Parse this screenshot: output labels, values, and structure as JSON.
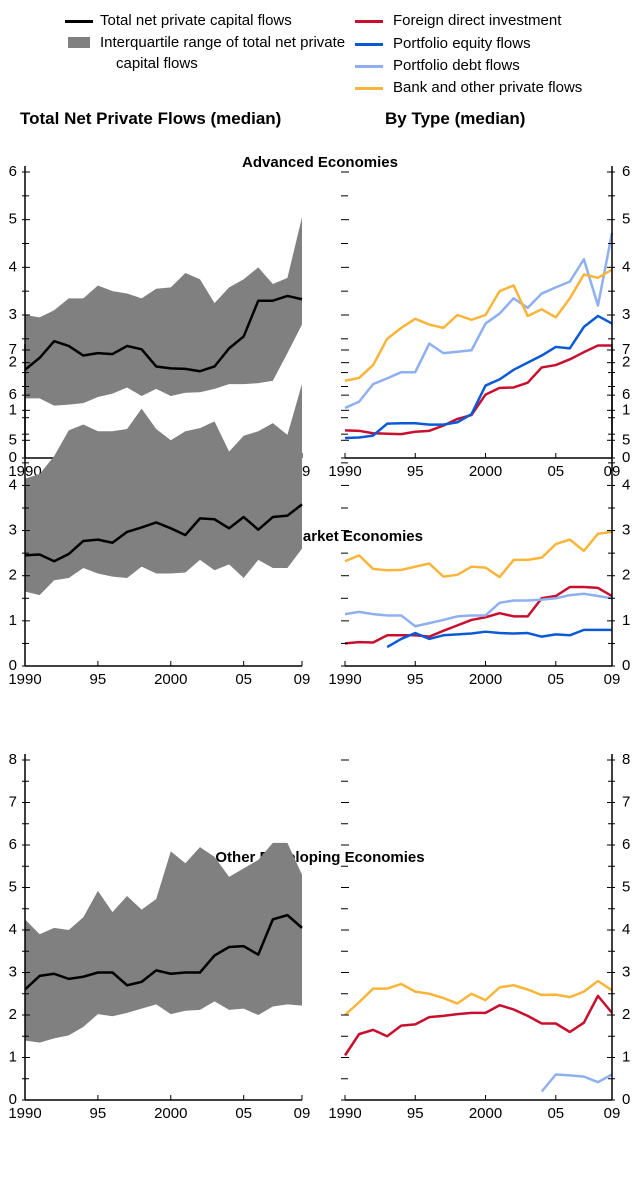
{
  "chart_data": [
    {
      "type": "band-line",
      "title": "Advanced Economies",
      "subtitle": "Total Net Private Flows (median)",
      "x": [
        1990,
        1991,
        1992,
        1993,
        1994,
        1995,
        1996,
        1997,
        1998,
        1999,
        2000,
        2001,
        2002,
        2003,
        2004,
        2005,
        2006,
        2007,
        2008,
        2009
      ],
      "xlim": [
        1990,
        2009
      ],
      "xticks": [
        1990,
        {
          "value": 1995,
          "label": "95"
        },
        2000,
        {
          "value": 2005,
          "label": "05"
        },
        {
          "value": 2009,
          "label": "09"
        }
      ],
      "ylim": [
        0,
        6
      ],
      "yticks": [
        0,
        1,
        2,
        3,
        4,
        5,
        6
      ],
      "yminorticks": [
        0.5,
        1.5,
        2.5,
        3.5,
        4.5,
        5.5
      ],
      "band": {
        "name": "Interquartile range of total net private capital flows",
        "color": "#808080",
        "upper": [
          3.0,
          2.95,
          3.1,
          3.35,
          3.35,
          3.62,
          3.5,
          3.45,
          3.35,
          3.55,
          3.58,
          3.88,
          3.75,
          3.25,
          3.58,
          3.75,
          4.0,
          3.65,
          3.78,
          5.05
        ],
        "lower": [
          1.25,
          1.25,
          1.1,
          1.12,
          1.15,
          1.28,
          1.35,
          1.48,
          1.3,
          1.45,
          1.3,
          1.37,
          1.38,
          1.45,
          1.55,
          1.55,
          1.57,
          1.62,
          2.2,
          2.8
        ]
      },
      "series": [
        {
          "name": "Total net private capital flows",
          "color": "#000000",
          "values": [
            1.85,
            2.1,
            2.45,
            2.35,
            2.15,
            2.2,
            2.18,
            2.35,
            2.28,
            1.92,
            1.88,
            1.87,
            1.82,
            1.92,
            2.3,
            2.55,
            3.3,
            3.3,
            3.4,
            3.33
          ]
        }
      ]
    },
    {
      "type": "line",
      "subtitle": "By Type (median)",
      "x": [
        1990,
        1991,
        1992,
        1993,
        1994,
        1995,
        1996,
        1997,
        1998,
        1999,
        2000,
        2001,
        2002,
        2003,
        2004,
        2005,
        2006,
        2007,
        2008,
        2009
      ],
      "xlim": [
        1990,
        2009
      ],
      "xticks": [
        1990,
        {
          "value": 1995,
          "label": "95"
        },
        2000,
        {
          "value": 2005,
          "label": "05"
        },
        {
          "value": 2009,
          "label": "09"
        }
      ],
      "ylim": [
        0,
        6
      ],
      "yticks": [
        0,
        1,
        2,
        3,
        4,
        5,
        6
      ],
      "yminorticks": [
        0.5,
        1.5,
        2.5,
        3.5,
        4.5,
        5.5
      ],
      "series": [
        {
          "name": "Foreign direct investment",
          "color": "#c8102e",
          "values": [
            0.58,
            0.57,
            0.52,
            0.51,
            0.5,
            0.55,
            0.57,
            0.68,
            0.82,
            0.9,
            1.33,
            1.47,
            1.48,
            1.58,
            1.9,
            1.95,
            2.07,
            2.22,
            2.36,
            2.36
          ]
        },
        {
          "name": "Portfolio equity flows",
          "color": "#0a5ad6",
          "values": [
            0.42,
            0.43,
            0.47,
            0.72,
            0.73,
            0.73,
            0.7,
            0.7,
            0.75,
            0.92,
            1.52,
            1.65,
            1.85,
            2.0,
            2.15,
            2.33,
            2.3,
            2.75,
            2.98,
            2.82
          ]
        },
        {
          "name": "Portfolio debt flows",
          "color": "#8fb0f0",
          "values": [
            1.05,
            1.18,
            1.55,
            1.67,
            1.8,
            1.8,
            2.4,
            2.2,
            2.23,
            2.26,
            2.82,
            3.03,
            3.35,
            3.15,
            3.45,
            3.58,
            3.7,
            4.17,
            3.2,
            4.72
          ]
        },
        {
          "name": "Bank and other private flows",
          "color": "#f9b43a",
          "values": [
            1.62,
            1.68,
            1.95,
            2.5,
            2.73,
            2.92,
            2.8,
            2.73,
            3.0,
            2.9,
            3.0,
            3.5,
            3.62,
            2.98,
            3.12,
            2.95,
            3.35,
            3.85,
            3.78,
            3.95
          ]
        }
      ]
    },
    {
      "type": "band-line",
      "title": "Emerging Market Economies",
      "x": [
        1990,
        1991,
        1992,
        1993,
        1994,
        1995,
        1996,
        1997,
        1998,
        1999,
        2000,
        2001,
        2002,
        2003,
        2004,
        2005,
        2006,
        2007,
        2008,
        2009
      ],
      "xlim": [
        1990,
        2009
      ],
      "xticks": [
        1990,
        {
          "value": 1995,
          "label": "95"
        },
        2000,
        {
          "value": 2005,
          "label": "05"
        },
        {
          "value": 2009,
          "label": "09"
        }
      ],
      "ylim": [
        0,
        7
      ],
      "yticks": [
        0,
        1,
        2,
        3,
        4,
        5,
        6,
        7
      ],
      "yminorticks": [
        0.5,
        1.5,
        2.5,
        3.5,
        4.5,
        5.5,
        6.5
      ],
      "band": {
        "color": "#808080",
        "upper": [
          4.15,
          4.25,
          4.65,
          5.22,
          5.35,
          5.2,
          5.2,
          5.25,
          5.7,
          5.25,
          5.0,
          5.2,
          5.27,
          5.42,
          4.75,
          5.1,
          5.2,
          5.38,
          5.12,
          6.25
        ],
        "lower": [
          1.65,
          1.57,
          1.9,
          1.95,
          2.17,
          2.05,
          1.98,
          1.95,
          2.2,
          2.05,
          2.05,
          2.07,
          2.35,
          2.12,
          2.25,
          1.95,
          2.35,
          2.17,
          2.17,
          2.6
        ]
      },
      "series": [
        {
          "color": "#000000",
          "values": [
            2.45,
            2.47,
            2.32,
            2.48,
            2.77,
            2.8,
            2.73,
            2.97,
            3.07,
            3.18,
            3.05,
            2.9,
            3.27,
            3.25,
            3.05,
            3.3,
            3.02,
            3.3,
            3.33,
            3.58
          ]
        }
      ]
    },
    {
      "type": "line",
      "x": [
        1990,
        1991,
        1992,
        1993,
        1994,
        1995,
        1996,
        1997,
        1998,
        1999,
        2000,
        2001,
        2002,
        2003,
        2004,
        2005,
        2006,
        2007,
        2008,
        2009
      ],
      "xlim": [
        1990,
        2009
      ],
      "xticks": [
        1990,
        {
          "value": 1995,
          "label": "95"
        },
        2000,
        {
          "value": 2005,
          "label": "05"
        },
        {
          "value": 2009,
          "label": "09"
        }
      ],
      "ylim": [
        0,
        7
      ],
      "yticks": [
        0,
        1,
        2,
        3,
        4,
        5,
        6,
        7
      ],
      "yminorticks": [
        0.5,
        1.5,
        2.5,
        3.5,
        4.5,
        5.5,
        6.5
      ],
      "series": [
        {
          "color": "#c8102e",
          "values": [
            0.5,
            0.53,
            0.52,
            0.68,
            0.68,
            0.68,
            0.65,
            0.78,
            0.9,
            1.02,
            1.08,
            1.17,
            1.1,
            1.1,
            1.5,
            1.55,
            1.75,
            1.75,
            1.73,
            1.55
          ]
        },
        {
          "color": "#0a5ad6",
          "values": [
            null,
            null,
            null,
            0.42,
            0.6,
            0.73,
            0.6,
            0.68,
            0.7,
            0.72,
            0.76,
            0.73,
            0.72,
            0.73,
            0.65,
            0.7,
            0.68,
            0.8,
            0.8,
            0.8
          ]
        },
        {
          "color": "#8fb0f0",
          "values": [
            1.15,
            1.2,
            1.15,
            1.12,
            1.12,
            0.88,
            0.95,
            1.02,
            1.1,
            1.12,
            1.12,
            1.4,
            1.45,
            1.45,
            1.47,
            1.5,
            1.57,
            1.6,
            1.55,
            1.5
          ]
        },
        {
          "color": "#f9b43a",
          "values": [
            2.32,
            2.45,
            2.15,
            2.12,
            2.13,
            2.2,
            2.27,
            1.98,
            2.02,
            2.2,
            2.18,
            1.97,
            2.35,
            2.35,
            2.4,
            2.7,
            2.8,
            2.55,
            2.93,
            2.97
          ]
        }
      ]
    },
    {
      "type": "band-line",
      "title": "Other Developing Economies",
      "x": [
        1990,
        1991,
        1992,
        1993,
        1994,
        1995,
        1996,
        1997,
        1998,
        1999,
        2000,
        2001,
        2002,
        2003,
        2004,
        2005,
        2006,
        2007,
        2008,
        2009
      ],
      "xlim": [
        1990,
        2009
      ],
      "xticks": [
        1990,
        {
          "value": 1995,
          "label": "95"
        },
        2000,
        {
          "value": 2005,
          "label": "05"
        },
        {
          "value": 2009,
          "label": "09"
        }
      ],
      "ylim": [
        0,
        8
      ],
      "yticks": [
        0,
        1,
        2,
        3,
        4,
        5,
        6,
        7,
        8
      ],
      "yminorticks": [
        0.5,
        1.5,
        2.5,
        3.5,
        4.5,
        5.5,
        6.5,
        7.5
      ],
      "band": {
        "color": "#808080",
        "upper": [
          4.25,
          3.9,
          4.05,
          4.0,
          4.3,
          4.92,
          4.42,
          4.8,
          4.48,
          4.73,
          5.85,
          5.57,
          5.95,
          5.72,
          5.25,
          5.45,
          5.65,
          6.05,
          6.05,
          5.3
        ],
        "lower": [
          1.4,
          1.35,
          1.45,
          1.52,
          1.72,
          2.02,
          1.97,
          2.05,
          2.15,
          2.25,
          2.02,
          2.1,
          2.12,
          2.32,
          2.12,
          2.15,
          2.0,
          2.2,
          2.25,
          2.22
        ]
      },
      "series": [
        {
          "color": "#000000",
          "values": [
            2.6,
            2.92,
            2.97,
            2.85,
            2.9,
            3.0,
            3.0,
            2.7,
            2.78,
            3.05,
            2.97,
            3.0,
            3.0,
            3.4,
            3.6,
            3.62,
            3.42,
            4.25,
            4.35,
            4.05
          ]
        }
      ]
    },
    {
      "type": "line",
      "x": [
        1990,
        1991,
        1992,
        1993,
        1994,
        1995,
        1996,
        1997,
        1998,
        1999,
        2000,
        2001,
        2002,
        2003,
        2004,
        2005,
        2006,
        2007,
        2008,
        2009
      ],
      "xlim": [
        1990,
        2009
      ],
      "xticks": [
        1990,
        {
          "value": 1995,
          "label": "95"
        },
        2000,
        {
          "value": 2005,
          "label": "05"
        },
        {
          "value": 2009,
          "label": "09"
        }
      ],
      "ylim": [
        0,
        8
      ],
      "yticks": [
        0,
        1,
        2,
        3,
        4,
        5,
        6,
        7,
        8
      ],
      "yminorticks": [
        0.5,
        1.5,
        2.5,
        3.5,
        4.5,
        5.5,
        6.5,
        7.5
      ],
      "series": [
        {
          "color": "#c8102e",
          "values": [
            1.05,
            1.55,
            1.65,
            1.5,
            1.75,
            1.78,
            1.95,
            1.98,
            2.02,
            2.05,
            2.05,
            2.23,
            2.13,
            1.98,
            1.8,
            1.8,
            1.6,
            1.82,
            2.45,
            2.05
          ]
        },
        {
          "color": "#8fb0f0",
          "values": [
            null,
            null,
            null,
            null,
            null,
            null,
            null,
            null,
            null,
            null,
            null,
            null,
            null,
            null,
            0.2,
            0.6,
            0.58,
            0.55,
            0.42,
            0.6
          ]
        },
        {
          "color": "#f9b43a",
          "values": [
            2.0,
            2.3,
            2.62,
            2.62,
            2.73,
            2.55,
            2.5,
            2.4,
            2.27,
            2.5,
            2.35,
            2.65,
            2.7,
            2.6,
            2.47,
            2.48,
            2.42,
            2.55,
            2.8,
            2.58
          ]
        }
      ]
    }
  ]
}
